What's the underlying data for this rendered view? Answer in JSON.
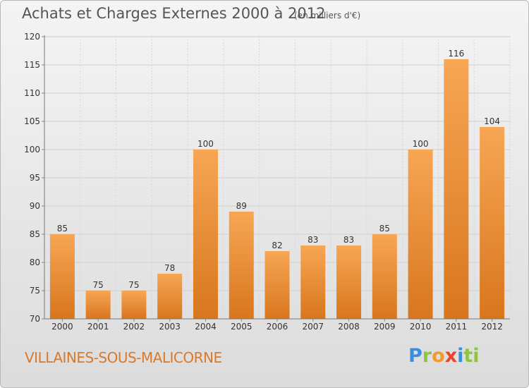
{
  "header": {
    "title": "Achats et Charges Externes 2000 à 2012",
    "subtitle": "(en milliers d'€)"
  },
  "footer": {
    "commune": "VILLAINES-SOUS-MALICORNE",
    "logo": "Proxiti"
  },
  "colors": {
    "bar_top": "#f7a654",
    "bar_bottom": "#d8761e",
    "commune_text": "#d87a2a"
  },
  "chart_data": {
    "type": "bar",
    "title": "Achats et Charges Externes 2000 à 2012",
    "subtitle": "(en milliers d'€)",
    "xlabel": "",
    "ylabel": "",
    "categories": [
      "2000",
      "2001",
      "2002",
      "2003",
      "2004",
      "2005",
      "2006",
      "2007",
      "2008",
      "2009",
      "2010",
      "2011",
      "2012"
    ],
    "values": [
      85,
      75,
      75,
      78,
      100,
      89,
      82,
      83,
      83,
      85,
      100,
      116,
      104
    ],
    "ylim": [
      70,
      120
    ],
    "yticks": [
      70,
      75,
      80,
      85,
      90,
      95,
      100,
      105,
      110,
      115,
      120
    ],
    "grid": true,
    "legend": "none",
    "data_labels": true
  }
}
